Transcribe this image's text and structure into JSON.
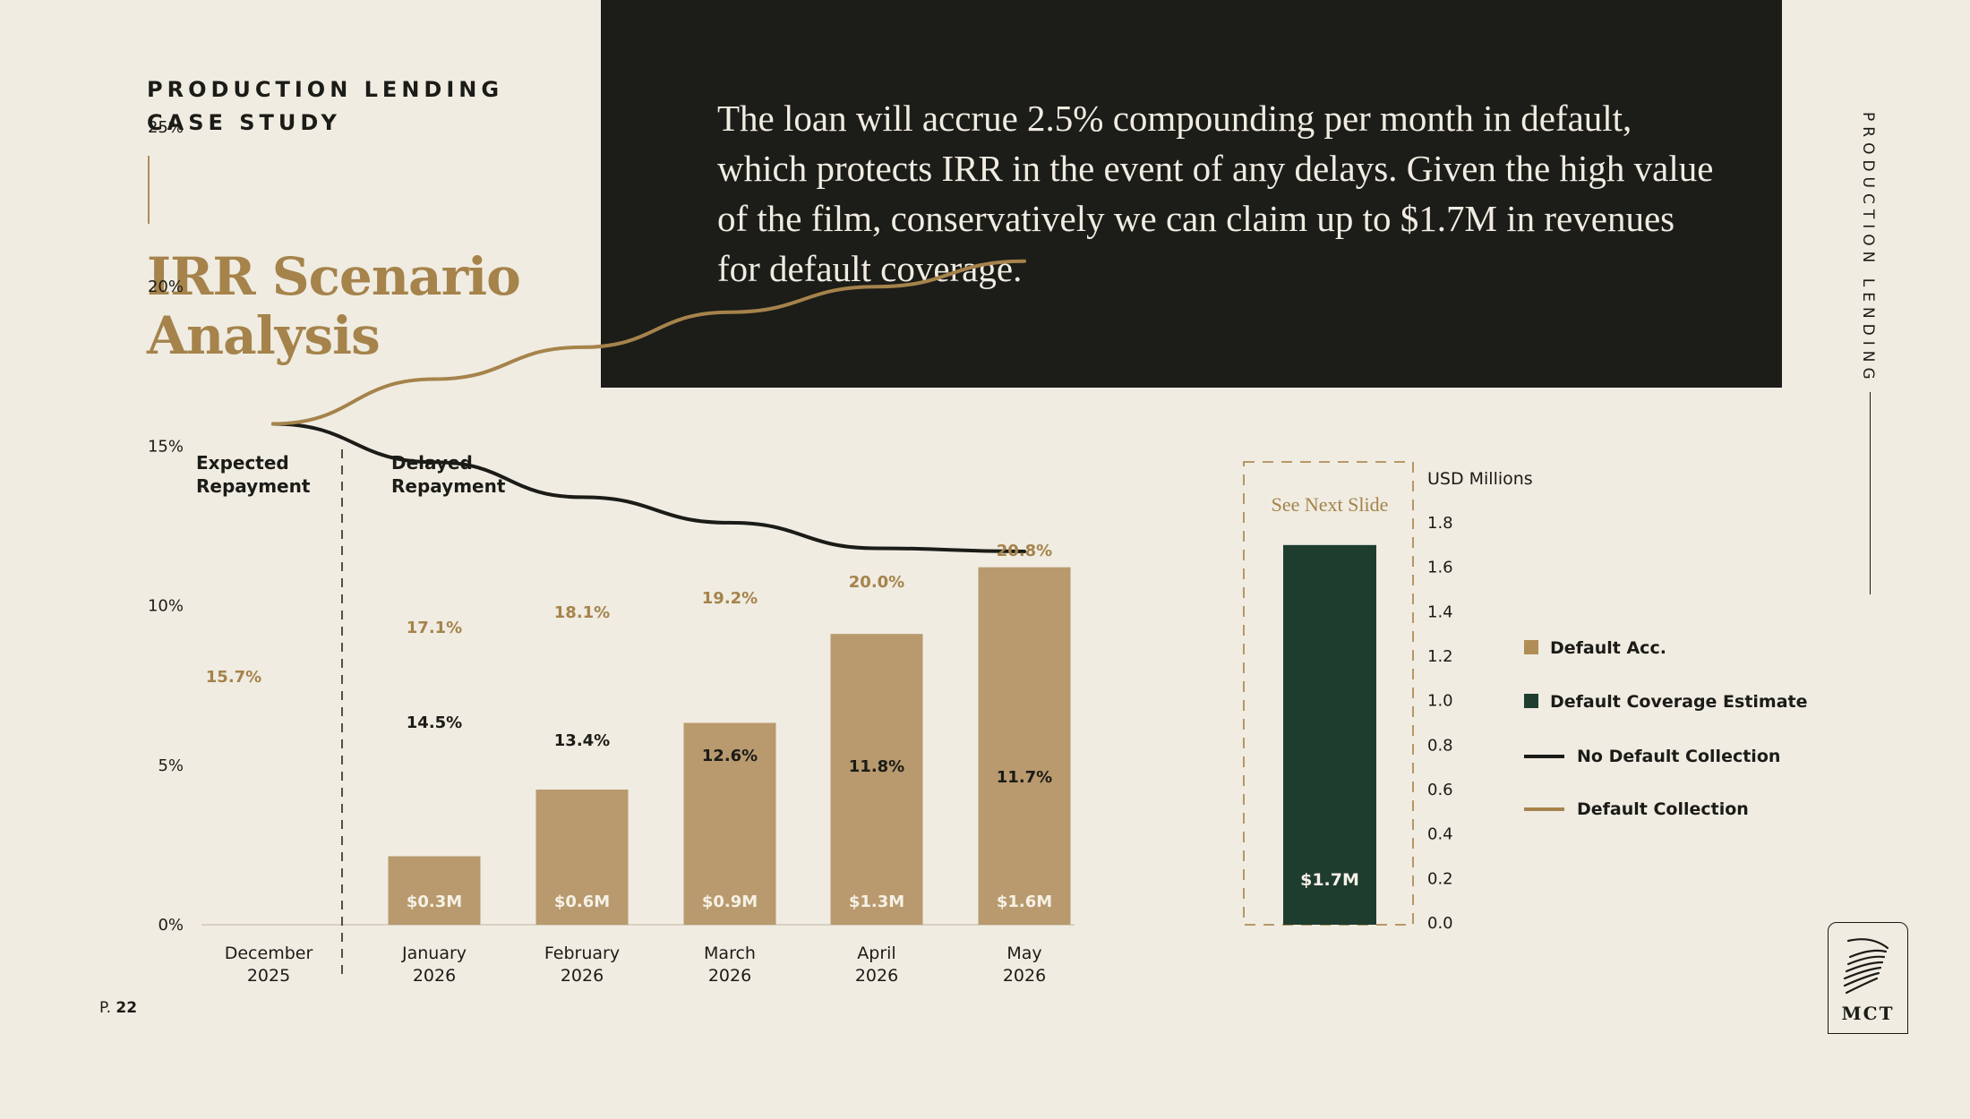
{
  "header": {
    "eyebrow_line1": "PRODUCTION LENDING",
    "eyebrow_line2": "CASE STUDY",
    "title_line1": "IRR Scenario",
    "title_line2": "Analysis",
    "side_label": "PRODUCTION LENDING"
  },
  "quote": "The loan will accrue 2.5% compounding per month in default, which protects IRR in the event of any delays. Given the high value of the film, conservatively we can claim up to $1.7M in revenues for default coverage.",
  "footer": {
    "page_prefix": "P.",
    "page_number": "22",
    "logo_text": "MCT"
  },
  "colors": {
    "background": "#f0ece2",
    "dark": "#1c1c18",
    "gold": "#a5834b",
    "bar_tan": "#b89a6e",
    "green": "#1f3d2f",
    "black_line": "#1b1b17"
  },
  "chart_data": {
    "type": "bar",
    "categories": [
      "December\n2025",
      "January\n2026",
      "February\n2026",
      "March\n2026",
      "April\n2026",
      "May\n2026"
    ],
    "category_lines": [
      [
        "December",
        "2025"
      ],
      [
        "January",
        "2026"
      ],
      [
        "February",
        "2026"
      ],
      [
        "March",
        "2026"
      ],
      [
        "April",
        "2026"
      ],
      [
        "May",
        "2026"
      ]
    ],
    "sections": {
      "expected": [
        "Expected",
        "Repayment"
      ],
      "delayed": [
        "Delayed",
        "Repayment"
      ]
    },
    "left_axis": {
      "ticks": [
        "0%",
        "5%",
        "10%",
        "15%",
        "20%",
        "25%"
      ],
      "ylim": [
        0,
        25
      ]
    },
    "right_axis": {
      "label": "USD Millions",
      "ticks": [
        "0.0",
        "0.2",
        "0.4",
        "0.6",
        "0.8",
        "1.0",
        "1.2",
        "1.4",
        "1.6",
        "1.8"
      ],
      "ylim": [
        0,
        1.8
      ]
    },
    "series": [
      {
        "name": "Default Acc.",
        "kind": "bar",
        "axis": "right",
        "values": [
          null,
          0.3,
          0.6,
          0.9,
          1.3,
          1.6
        ],
        "labels": [
          "",
          "$0.3M",
          "$0.6M",
          "$0.9M",
          "$1.3M",
          "$1.6M"
        ]
      },
      {
        "name": "No Default Collection",
        "kind": "line",
        "axis": "left",
        "values": [
          15.7,
          14.5,
          13.4,
          12.6,
          11.8,
          11.7
        ],
        "labels": [
          "",
          "14.5%",
          "13.4%",
          "12.6%",
          "11.8%",
          "11.7%"
        ]
      },
      {
        "name": "Default Collection",
        "kind": "line",
        "axis": "left",
        "values": [
          15.7,
          17.1,
          18.1,
          19.2,
          20.0,
          20.8
        ],
        "labels": [
          "15.7%",
          "17.1%",
          "18.1%",
          "19.2%",
          "20.0%",
          "20.8%"
        ]
      }
    ],
    "coverage": {
      "name": "Default Coverage Estimate",
      "value": 1.7,
      "label": "$1.7M",
      "note": "See Next Slide"
    },
    "legend": [
      {
        "name": "Default Acc.",
        "kind": "square",
        "color": "#b08d57"
      },
      {
        "name": "Default Coverage Estimate",
        "kind": "square",
        "color": "#1f3d2f"
      },
      {
        "name": "No Default Collection",
        "kind": "line",
        "color": "#1b1b17"
      },
      {
        "name": "Default Collection",
        "kind": "line",
        "color": "#a5834b"
      }
    ]
  }
}
